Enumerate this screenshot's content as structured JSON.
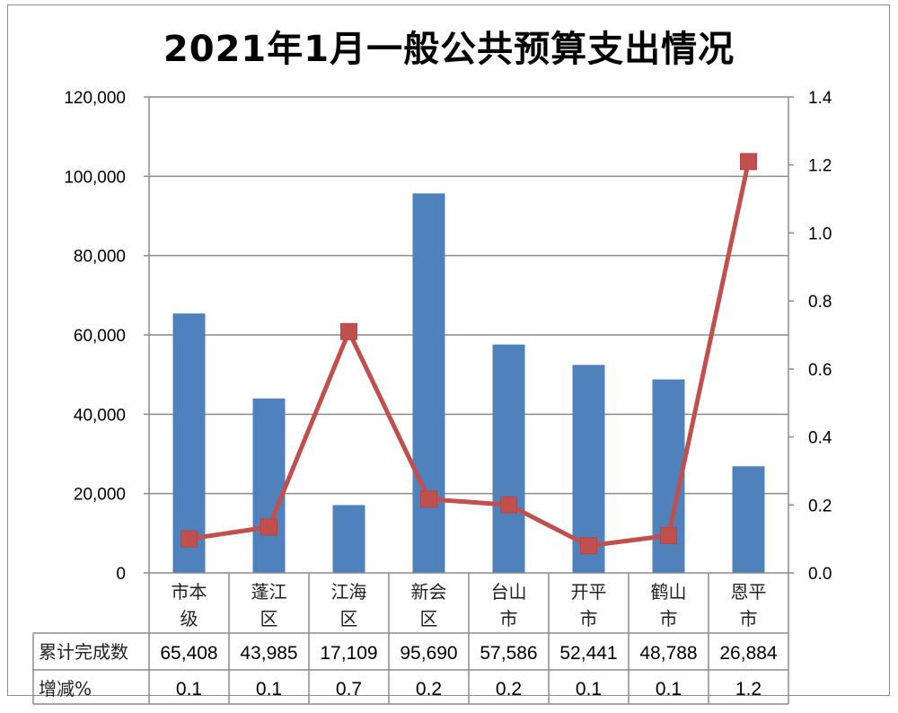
{
  "chart_data": {
    "type": "bar+line",
    "title": "2021年1月一般公共预算支出情况",
    "categories": [
      "市本级",
      "蓬江区",
      "江海区",
      "新会区",
      "台山市",
      "开平市",
      "鹤山市",
      "恩平市"
    ],
    "category_lines": [
      [
        "市本",
        "级"
      ],
      [
        "蓬江",
        "区"
      ],
      [
        "江海",
        "区"
      ],
      [
        "新会",
        "区"
      ],
      [
        "台山",
        "市"
      ],
      [
        "开平",
        "市"
      ],
      [
        "鹤山",
        "市"
      ],
      [
        "恩平",
        "市"
      ]
    ],
    "series": [
      {
        "name": "累计完成数",
        "type": "bar",
        "axis": "left",
        "color": "#4F81BD",
        "values": [
          65408,
          43985,
          17109,
          95690,
          57586,
          52441,
          48788,
          26884
        ],
        "labels": [
          "65,408",
          "43,985",
          "17,109",
          "95,690",
          "57,586",
          "52,441",
          "48,788",
          "26,884"
        ]
      },
      {
        "name": "增减%",
        "type": "line",
        "axis": "right",
        "color": "#C0504D",
        "marker": "square",
        "values": [
          0.1,
          0.135,
          0.71,
          0.217,
          0.2,
          0.08,
          0.11,
          1.21
        ],
        "labels": [
          "0.1",
          "0.1",
          "0.7",
          "0.2",
          "0.2",
          "0.1",
          "0.1",
          "1.2"
        ]
      }
    ],
    "y_left": {
      "min": 0,
      "max": 120000,
      "step": 20000,
      "ticks": [
        "0",
        "20,000",
        "40,000",
        "60,000",
        "80,000",
        "100,000",
        "120,000"
      ]
    },
    "y_right": {
      "min": 0,
      "max": 1.4,
      "step": 0.2,
      "ticks": [
        "0.0",
        "0.2",
        "0.4",
        "0.6",
        "0.8",
        "1.0",
        "1.2",
        "1.4"
      ]
    },
    "grid": true,
    "legend": "data-table",
    "xlabel": "",
    "ylabel": ""
  },
  "table": {
    "row_headers": [
      "累计完成数",
      "增减%"
    ]
  },
  "colors": {
    "bar": "#4F81BD",
    "line": "#C0504D",
    "grid": "#8C8C8C"
  }
}
